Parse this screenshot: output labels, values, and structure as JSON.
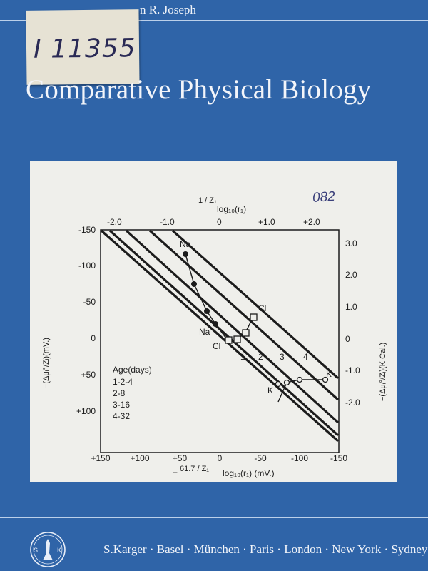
{
  "header": {
    "author": "n R. Joseph",
    "library_code": "I 11355",
    "title": "Comparative Physical Biology"
  },
  "figure": {
    "handwritten_note": "082",
    "top_axis_label": "log₁₀(r₁)",
    "top_axis_fraction": "1 / Z₁",
    "top_ticks": [
      "-2.0",
      "-1.0",
      "0",
      "+1.0",
      "+2.0"
    ],
    "left_ticks": [
      "-150",
      "-100",
      "-50",
      "0",
      "+50",
      "+100"
    ],
    "right_ticks": [
      "3.0",
      "2.0",
      "1.0",
      "0",
      "-1.0",
      "-2.0"
    ],
    "bottom_ticks": [
      "+150",
      "+100",
      "+50",
      "0",
      "-50",
      "-100",
      "-150"
    ],
    "bottom_axis_label": "log₁₀(r₁) (mV.)",
    "bottom_axis_prefix": "−",
    "bottom_axis_fraction": "61.7 / Z₁",
    "left_axis_label": "−(Δμᵢ°/Zᵢ)(mV.)",
    "right_axis_label": "−(Δμᵢ°/Zᵢ)(K Cal.)",
    "legend_title": "Age(days)",
    "legend_items": [
      "1-2-4",
      "2-8",
      "3-16",
      "4-32"
    ],
    "line_numbers": [
      "1",
      "2",
      "3",
      "4"
    ],
    "ion_labels": {
      "na_top": "Na",
      "na_low": "Na",
      "cl_low": "Cl",
      "cl_high": "Cl",
      "k_low": "K",
      "k_high": "K"
    }
  },
  "publisher": {
    "seal_letters": [
      "S",
      "K"
    ],
    "imprint": "S.Karger · Basel · München · Paris · London · New York · Sydney"
  }
}
